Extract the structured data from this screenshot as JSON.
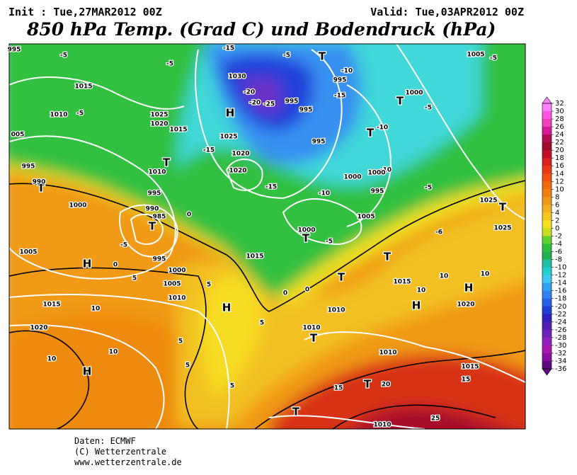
{
  "header": {
    "init": "Init : Tue,27MAR2012 00Z",
    "valid": "Valid: Tue,03APR2012 00Z",
    "title": "850 hPa Temp. (Grad C) und Bodendruck (hPa)"
  },
  "colorbar": {
    "ticks": [
      32,
      30,
      28,
      26,
      24,
      22,
      20,
      18,
      16,
      14,
      12,
      10,
      8,
      6,
      4,
      2,
      0,
      -2,
      -4,
      -6,
      -8,
      -10,
      -12,
      -14,
      -16,
      -18,
      -20,
      -22,
      -24,
      -26,
      -28,
      -30,
      -32,
      -34,
      -36
    ],
    "colors": [
      "#ff80ff",
      "#ff55e0",
      "#f040c0",
      "#d81898",
      "#b00a50",
      "#a00a2a",
      "#c0102a",
      "#d82020",
      "#e83818",
      "#f05010",
      "#f06a10",
      "#f08010",
      "#f09818",
      "#f0b020",
      "#f4c820",
      "#f6e020",
      "#c8e020",
      "#60d030",
      "#30c040",
      "#20b050",
      "#20c0a0",
      "#20d0d0",
      "#40c8f0",
      "#30a0f0",
      "#3080f0",
      "#2860e8",
      "#2040d8",
      "#3020c0",
      "#5020b0",
      "#7020b8",
      "#9020c0",
      "#a818b0",
      "#8810a0",
      "#600880"
    ]
  },
  "map": {
    "labels": [
      "995",
      "-5",
      "-5",
      "-15",
      "-5",
      "T",
      "1005",
      "-5",
      "1030",
      "-10",
      "995",
      "-20",
      "-15",
      "1000",
      "1015",
      "-20",
      "-25",
      "995",
      "T",
      "-5",
      "H",
      "995",
      "1025",
      "1010",
      "-5",
      "1020",
      "1015",
      "-10",
      "1025",
      "T",
      "005",
      "995",
      "-15",
      "1020",
      "T",
      "995",
      "-10",
      "1020",
      "1000",
      "1000",
      "1010",
      "T",
      "990",
      "-15",
      "-5",
      "995",
      "-10",
      "995",
      "1000",
      "T",
      "1025",
      "990",
      "985",
      "0",
      "T",
      "1005",
      "1000",
      "T",
      "-6",
      "1025",
      "-5",
      "1005",
      "-5",
      "H",
      "1015",
      "995",
      "T",
      "0",
      "1000",
      "5",
      "T",
      "10",
      "10",
      "1005",
      "1015",
      "10",
      "H",
      "5",
      "0",
      "0",
      "1010",
      "1015",
      "10",
      "H",
      "H",
      "1020",
      "1010",
      "5",
      "1010",
      "1020",
      "T",
      "5",
      "1010",
      "10",
      "10",
      "H",
      "5",
      "1015",
      "5",
      "15",
      "T",
      "20",
      "15",
      "T",
      "25",
      "1010"
    ]
  },
  "footer": {
    "lines": [
      "Daten: ECMWF",
      "(C) Wetterzentrale",
      "www.wetterzentrale.de"
    ]
  }
}
